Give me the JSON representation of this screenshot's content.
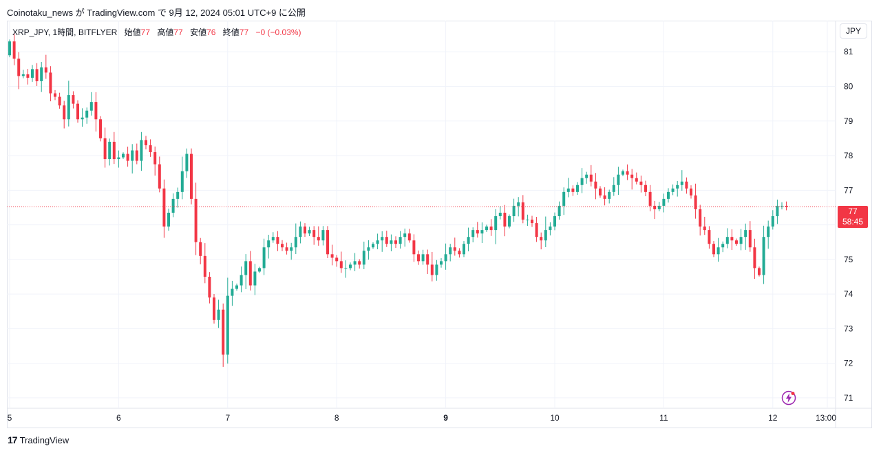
{
  "header": {
    "publish_line": "Coinotaku_news が TradingView.com で 9月 12, 2024 05:01 UTC+9 に公開"
  },
  "legend": {
    "symbol": "XRP_JPY, 1時間, BITFLYER",
    "open_label": "始値",
    "open_value": "77",
    "high_label": "高値",
    "high_value": "77",
    "low_label": "安値",
    "low_value": "76",
    "close_label": "終値",
    "close_value": "77",
    "change": "−0 (−0.03%)"
  },
  "currency_button": "JPY",
  "price_tag": {
    "price": "77",
    "countdown": "58:45"
  },
  "footer": {
    "logo_mark": "17",
    "brand": "TradingView"
  },
  "colors": {
    "up": "#22ab94",
    "down": "#f23645",
    "grid": "#f0f3fa",
    "axis_text": "#131722"
  },
  "chart_data": {
    "type": "candlestick",
    "y_axis": {
      "ticks": [
        71,
        72,
        73,
        74,
        75,
        76,
        77,
        78,
        79,
        80,
        81
      ],
      "range": [
        70.7,
        81.9
      ]
    },
    "x_axis": {
      "ticks": [
        "5",
        "6",
        "7",
        "8",
        "9",
        "10",
        "11",
        "12",
        "13:00"
      ],
      "bold_ticks": [
        "9"
      ],
      "bar_offsets": [
        0,
        24,
        48,
        72,
        96,
        120,
        144,
        168,
        180
      ]
    },
    "last_price": 76.52,
    "closes": [
      81.3,
      80.8,
      80.3,
      80.35,
      80.25,
      80.5,
      80.15,
      80.55,
      80.4,
      79.8,
      79.7,
      79.45,
      79.05,
      79.75,
      79.5,
      79.05,
      79.1,
      79.3,
      79.55,
      79.05,
      78.5,
      77.9,
      78.4,
      77.9,
      77.95,
      78.05,
      77.85,
      78.15,
      77.85,
      78.45,
      78.3,
      78.1,
      77.75,
      77.05,
      75.95,
      76.35,
      76.75,
      76.95,
      77.55,
      78.05,
      76.75,
      75.5,
      75.1,
      74.5,
      73.9,
      73.25,
      73.55,
      72.25,
      73.95,
      74.15,
      74.25,
      74.55,
      74.95,
      74.25,
      74.65,
      74.75,
      75.35,
      75.55,
      75.65,
      75.45,
      75.35,
      75.25,
      75.35,
      75.65,
      75.95,
      75.75,
      75.85,
      75.65,
      75.55,
      75.85,
      75.15,
      75.05,
      74.95,
      74.75,
      74.75,
      74.85,
      74.95,
      74.85,
      75.25,
      75.35,
      75.45,
      75.55,
      75.65,
      75.45,
      75.55,
      75.45,
      75.65,
      75.75,
      75.55,
      75.15,
      74.95,
      75.15,
      74.85,
      74.55,
      74.85,
      74.95,
      75.15,
      75.35,
      75.25,
      75.15,
      75.45,
      75.65,
      75.85,
      75.75,
      75.85,
      75.95,
      75.85,
      76.25,
      76.35,
      75.95,
      76.25,
      76.55,
      76.65,
      76.15,
      76.15,
      76.05,
      75.65,
      75.55,
      75.85,
      75.95,
      76.25,
      76.55,
      76.95,
      77.05,
      76.95,
      77.15,
      77.35,
      77.45,
      77.25,
      77.05,
      76.85,
      76.75,
      76.95,
      77.15,
      77.45,
      77.55,
      77.45,
      77.35,
      77.25,
      77.15,
      76.95,
      76.55,
      76.45,
      76.55,
      76.75,
      76.95,
      77.05,
      77.15,
      77.25,
      77.05,
      76.85,
      76.45,
      75.95,
      75.85,
      75.45,
      75.15,
      75.35,
      75.45,
      75.65,
      75.55,
      75.45,
      75.65,
      75.85,
      75.35,
      74.75,
      74.55,
      75.65,
      75.95,
      76.25,
      76.55,
      76.55,
      76.52
    ]
  }
}
